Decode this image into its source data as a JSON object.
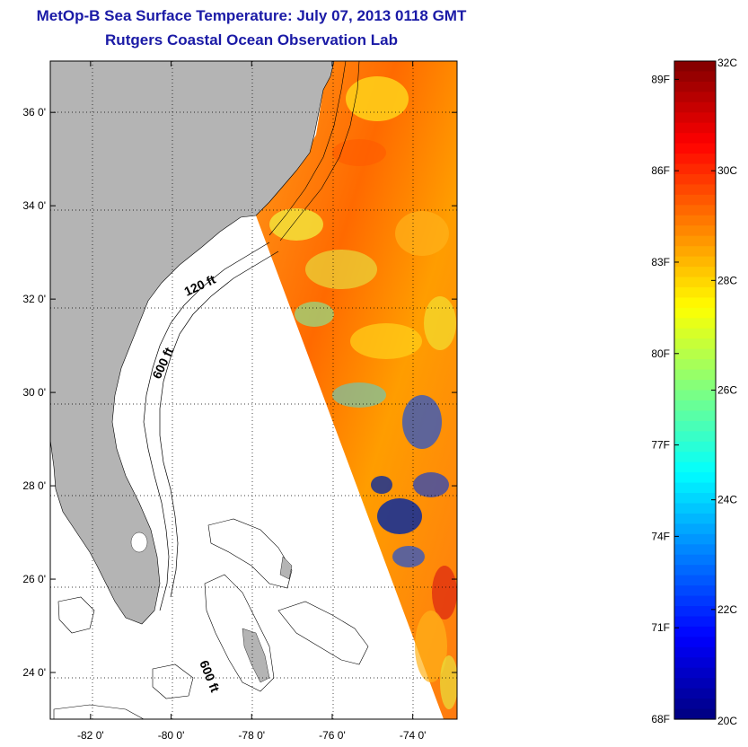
{
  "header": {
    "title": "MetOp-B Sea Surface Temperature:  July 07, 2013 0118 GMT",
    "subtitle": "Rutgers Coastal Ocean Observation Lab"
  },
  "map": {
    "lon_range": [
      -83.0,
      -72.9
    ],
    "lat_range": [
      23.0,
      37.1
    ],
    "lat_ticks": [
      {
        "value": 24,
        "label": "24 0'"
      },
      {
        "value": 26,
        "label": "26 0'"
      },
      {
        "value": 28,
        "label": "28 0'"
      },
      {
        "value": 30,
        "label": "30 0'"
      },
      {
        "value": 32,
        "label": "32 0'"
      },
      {
        "value": 34,
        "label": "34 0'"
      },
      {
        "value": 36,
        "label": "36 0'"
      }
    ],
    "lon_ticks": [
      {
        "value": -82,
        "label": "-82 0'"
      },
      {
        "value": -80,
        "label": "-80 0'"
      },
      {
        "value": -78,
        "label": "-78 0'"
      },
      {
        "value": -76,
        "label": "-76 0'"
      },
      {
        "value": -74,
        "label": "-74 0'"
      }
    ],
    "contour_labels": [
      "120 ft",
      "600 ft",
      "600 ft"
    ],
    "colors": {
      "land": "#b4b4b4",
      "ocean_nodata": "#ffffff",
      "grid": "#000000"
    }
  },
  "colorbar": {
    "min_c": 20,
    "max_c": 32,
    "celsius_labels": [
      {
        "value": 32,
        "label": "32C"
      },
      {
        "value": 30,
        "label": "30C"
      },
      {
        "value": 28,
        "label": "28C"
      },
      {
        "value": 26,
        "label": "26C"
      },
      {
        "value": 24,
        "label": "24C"
      },
      {
        "value": 22,
        "label": "22C"
      },
      {
        "value": 20,
        "label": "20C"
      }
    ],
    "fahrenheit_labels": [
      {
        "value": 89,
        "label": "89F"
      },
      {
        "value": 86,
        "label": "86F"
      },
      {
        "value": 83,
        "label": "83F"
      },
      {
        "value": 80,
        "label": "80F"
      },
      {
        "value": 77,
        "label": "77F"
      },
      {
        "value": 74,
        "label": "74F"
      },
      {
        "value": 71,
        "label": "71F"
      },
      {
        "value": 68,
        "label": "68F"
      }
    ]
  }
}
